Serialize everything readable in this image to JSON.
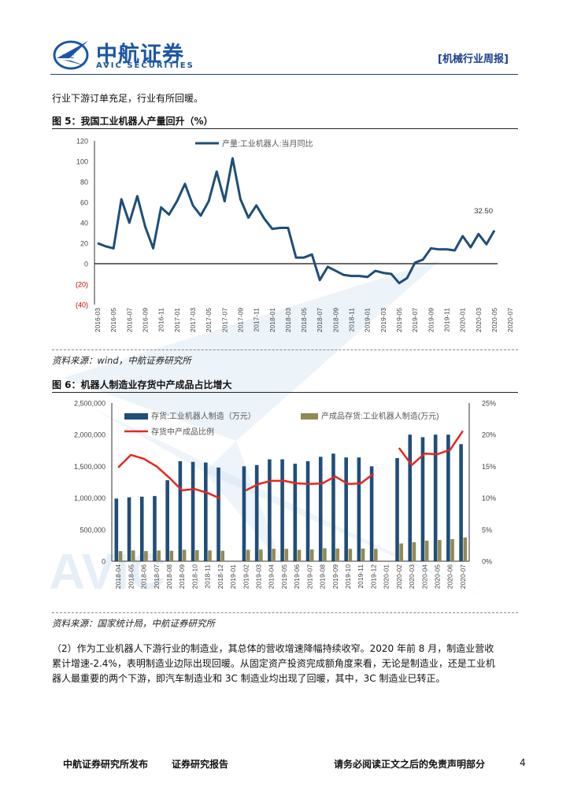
{
  "header": {
    "logo_cn": "中航证券",
    "logo_en": "AVIC SECURITIES",
    "logo_badge": "AVIC",
    "tag": "[机械行业周报]",
    "watermark": "AVIC"
  },
  "intro_text": "行业下游订单充足，行业有所回暖。",
  "figure5": {
    "title": "图 5：我国工业机器人产量回升（%）",
    "source": "资料来源：wind，中航证券研究所",
    "chart_data": {
      "type": "line",
      "title": "",
      "series": [
        {
          "name": "产量:工业机器人:当月同比",
          "color": "#1f4e79",
          "values": [
            20,
            17,
            15,
            63,
            40,
            66,
            36,
            15,
            55,
            48,
            61,
            78,
            57,
            47,
            61,
            90,
            61,
            103,
            63,
            45,
            57,
            44,
            34,
            35,
            35,
            6,
            6,
            9,
            -16,
            -3,
            -7,
            -11,
            -12,
            -12,
            -13,
            -7,
            -9,
            -10,
            -19,
            -14,
            1,
            4,
            15,
            14,
            14,
            13,
            27,
            16,
            29,
            19,
            32.5
          ]
        }
      ],
      "tick_labels": [
        "2016-03",
        "2016-05",
        "2016-07",
        "2016-09",
        "2016-11",
        "2017-01",
        "2017-03",
        "2017-05",
        "2017-07",
        "2017-09",
        "2017-11",
        "2018-01",
        "2018-03",
        "2018-05",
        "2018-07",
        "2018-09",
        "2018-11",
        "2019-01",
        "2019-03",
        "2019-05",
        "2019-07",
        "2019-09",
        "2019-11",
        "2020-01",
        "2020-03",
        "2020-05",
        "2020-07"
      ],
      "y_ticks": [
        {
          "v": 120,
          "t": "120"
        },
        {
          "v": 100,
          "t": "100"
        },
        {
          "v": 80,
          "t": "80"
        },
        {
          "v": 60,
          "t": "60"
        },
        {
          "v": 40,
          "t": "40"
        },
        {
          "v": 20,
          "t": "20"
        },
        {
          "v": 0,
          "t": "0"
        },
        {
          "v": -20,
          "t": "(20)"
        },
        {
          "v": -40,
          "t": "(40)"
        }
      ],
      "ylim": [
        -40,
        120
      ],
      "negative_tick_color": "#c00000",
      "end_label": "32.50",
      "legend": "top-center"
    }
  },
  "figure6": {
    "title": "图 6：机器人制造业存货中产成品占比增大",
    "source": "资料来源：国家统计局，中航证券研究所",
    "chart_data": {
      "type": "bar",
      "categories": [
        "2018-04",
        "2018-05",
        "2018-06",
        "2018-07",
        "2018-08",
        "2018-09",
        "2018-10",
        "2018-11",
        "2018-12",
        "2019-01",
        "2019-02",
        "2019-03",
        "2019-04",
        "2019-05",
        "2019-06",
        "2019-07",
        "2019-08",
        "2019-09",
        "2019-10",
        "2019-11",
        "2019-12",
        "2020-01",
        "2020-02",
        "2020-03",
        "2020-04",
        "2020-05",
        "2020-06",
        "2020-07"
      ],
      "series": [
        {
          "name": "存货:工业机器人制造（万元）",
          "axis": "left",
          "color": "#1f4e79",
          "values": [
            990000,
            1010000,
            1020000,
            1030000,
            1280000,
            1580000,
            1570000,
            1560000,
            1480000,
            null,
            1500000,
            1520000,
            1610000,
            1610000,
            1540000,
            1580000,
            1650000,
            1700000,
            1640000,
            1640000,
            1500000,
            null,
            1630000,
            2000000,
            1960000,
            2000000,
            2000000,
            1850000
          ]
        },
        {
          "name": "产成品存货:工业机器人制造(万元)",
          "axis": "left",
          "color": "#938953",
          "values": [
            160000,
            170000,
            160000,
            170000,
            165000,
            180000,
            175000,
            170000,
            165000,
            null,
            180000,
            185000,
            195000,
            195000,
            180000,
            185000,
            205000,
            200000,
            195000,
            200000,
            195000,
            null,
            280000,
            300000,
            325000,
            335000,
            350000,
            375000
          ]
        },
        {
          "name": "存货中产成品比例",
          "axis": "right",
          "type": "line",
          "color": "#e8261c",
          "values": [
            14.8,
            16.8,
            16.2,
            15,
            13.2,
            11.2,
            11.4,
            10.8,
            9.9,
            null,
            11.2,
            12.2,
            12.7,
            12.7,
            12.3,
            12.2,
            12.3,
            13.4,
            12.2,
            12.3,
            13.8,
            null,
            17.9,
            15.2,
            17,
            16.9,
            17.6,
            20.6
          ]
        }
      ],
      "left_ticks": [
        "0",
        "500,000",
        "1,000,000",
        "1,500,000",
        "2,000,000",
        "2,500,000"
      ],
      "right_ticks": [
        "0%",
        "5%",
        "10%",
        "15%",
        "20%",
        "25%"
      ],
      "ylim_left": [
        0,
        2500000
      ],
      "ylim_right": [
        0,
        25
      ],
      "legend": "top"
    }
  },
  "paragraph": {
    "lines": [
      "（2）作为工业机器人下游行业的制造业，其总体的营收增速降幅持续收窄。2020 年前 8 月，制造业营收",
      "累计增速-2.4%，表明制造业边际出现回暖。从固定资产投资完成额角度来看，无论是制造业，还是工业机",
      "器人最重要的两个下游，即汽车制造业和 3C 制造业均出现了回暖，其中，3C 制造业已转正。"
    ]
  },
  "footer": {
    "left": "中航证券研究所发布",
    "middle": "证券研究报告",
    "right": "请务必阅读正文之后的免责声明部分",
    "page": "4"
  }
}
